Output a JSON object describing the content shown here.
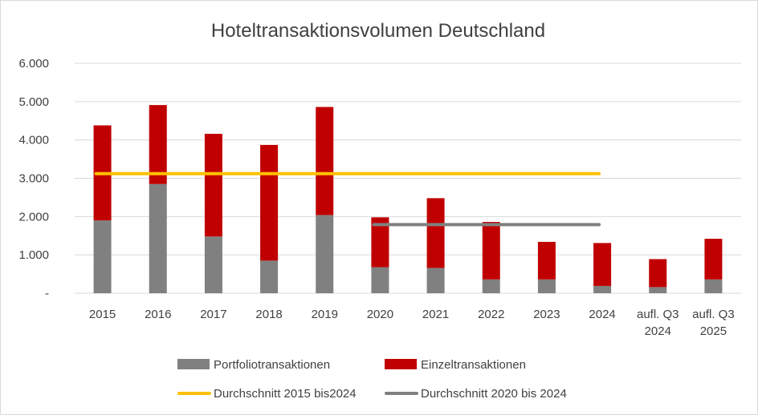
{
  "chart_data": {
    "type": "bar",
    "title": "Hoteltransaktionsvolumen Deutschland",
    "categories": [
      [
        "2015"
      ],
      [
        "2016"
      ],
      [
        "2017"
      ],
      [
        "2018"
      ],
      [
        "2019"
      ],
      [
        "2020"
      ],
      [
        "2021"
      ],
      [
        "2022"
      ],
      [
        "2023"
      ],
      [
        "2024"
      ],
      [
        "aufl. Q3",
        "2024"
      ],
      [
        "aufl. Q3",
        "2025"
      ]
    ],
    "stacked": true,
    "series": [
      {
        "name": "Portfoliotransaktionen",
        "color": "#808080",
        "values": [
          1900,
          2850,
          1480,
          850,
          2040,
          680,
          660,
          360,
          360,
          190,
          160,
          360
        ]
      },
      {
        "name": "Einzeltransaktionen",
        "color": "#c00000",
        "values": [
          2480,
          2060,
          2680,
          3020,
          2820,
          1300,
          1820,
          1500,
          980,
          1120,
          730,
          1060
        ]
      }
    ],
    "reference_lines": [
      {
        "name": "Durchschnitt 2015 bis2024",
        "color": "#ffc000",
        "value": 3120,
        "from": "2015",
        "to": "2024"
      },
      {
        "name": "Durchschnitt 2020 bis 2024",
        "color": "#808080",
        "value": 1790,
        "from": "2020",
        "to": "2024"
      }
    ],
    "ylim": [
      0,
      6000
    ],
    "yticks": [
      0,
      1000,
      2000,
      3000,
      4000,
      5000,
      6000
    ],
    "ytick_labels": [
      "-",
      "1.000",
      "2.000",
      "3.000",
      "4.000",
      "5.000",
      "6.000"
    ],
    "grid": true,
    "legend_position": "bottom"
  }
}
